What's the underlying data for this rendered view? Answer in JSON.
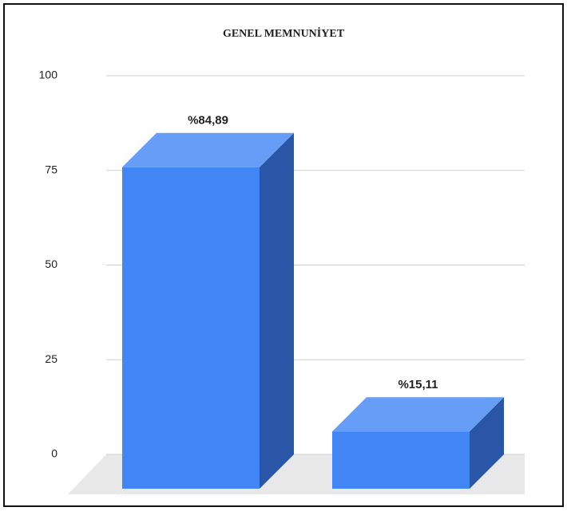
{
  "chart_data": {
    "type": "bar3d",
    "title": "GENEL MEMNUNİYET",
    "categories": [
      null,
      null
    ],
    "values": [
      84.89,
      15.11
    ],
    "value_labels": [
      "%84,89",
      "%15,11"
    ],
    "color": "#4285f4",
    "ylim": [
      0,
      100
    ],
    "yticks": [
      0,
      25,
      50,
      75,
      100
    ],
    "grid": true
  }
}
